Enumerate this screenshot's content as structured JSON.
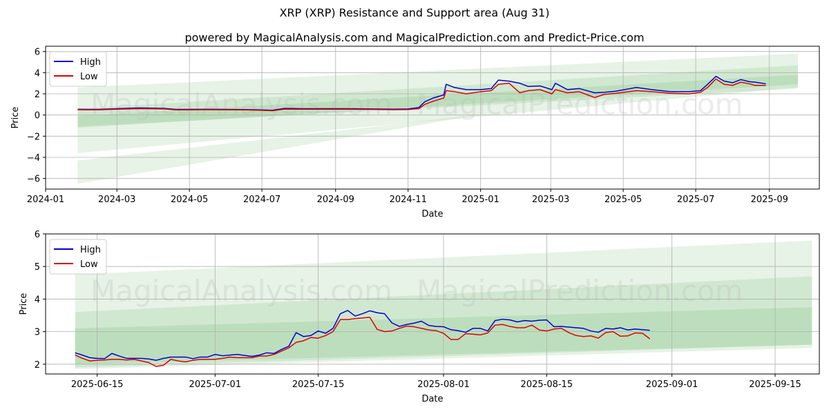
{
  "page": {
    "title": "XRP (XRP) Resistance and Support area (Aug 31)",
    "subtitle": "powered by MagicalAnalysis.com and MagicalPrediction.com and Predict-Price.com",
    "watermarks": [
      "MagicalAnalysis.com",
      "MagicalPrediction.com"
    ]
  },
  "colors": {
    "high": "#0000cc",
    "low": "#dd0000",
    "band": "#2e9a2e",
    "grid": "#b0b0b0"
  },
  "chart_data": [
    {
      "type": "line",
      "name": "full-range",
      "xlabel": "Date",
      "ylabel": "Price",
      "ylim": [
        -7,
        6.5
      ],
      "xlim": [
        "2024-01-01",
        "2025-10-13"
      ],
      "yticks": [
        -6,
        -4,
        -2,
        0,
        2,
        4,
        6
      ],
      "yticklabels": [
        "−6",
        "−4",
        "−2",
        "0",
        "2",
        "4",
        "6"
      ],
      "xticks": [
        "2024-01-01",
        "2024-03-01",
        "2024-05-01",
        "2024-07-01",
        "2024-09-01",
        "2024-11-01",
        "2025-01-01",
        "2025-03-01",
        "2025-05-01",
        "2025-07-01",
        "2025-09-01"
      ],
      "xticklabels": [
        "2024-01",
        "2024-03",
        "2024-05",
        "2024-07",
        "2024-09",
        "2024-11",
        "2025-01",
        "2025-03",
        "2025-05",
        "2025-07",
        "2025-09"
      ],
      "legend": {
        "position": "top-left",
        "entries": [
          "High",
          "Low"
        ]
      },
      "series": [
        {
          "name": "High",
          "x": [
            "2024-01-28",
            "2024-02-15",
            "2024-03-01",
            "2024-03-20",
            "2024-04-10",
            "2024-04-20",
            "2024-05-15",
            "2024-06-15",
            "2024-07-01",
            "2024-07-10",
            "2024-07-20",
            "2024-08-05",
            "2024-08-20",
            "2024-09-10",
            "2024-10-01",
            "2024-10-20",
            "2024-11-01",
            "2024-11-10",
            "2024-11-15",
            "2024-11-22",
            "2024-12-01",
            "2024-12-03",
            "2024-12-10",
            "2024-12-20",
            "2025-01-01",
            "2025-01-10",
            "2025-01-16",
            "2025-01-25",
            "2025-02-03",
            "2025-02-10",
            "2025-02-20",
            "2025-03-02",
            "2025-03-05",
            "2025-03-15",
            "2025-03-25",
            "2025-04-07",
            "2025-04-15",
            "2025-04-25",
            "2025-05-12",
            "2025-05-25",
            "2025-06-10",
            "2025-06-25",
            "2025-07-05",
            "2025-07-11",
            "2025-07-18",
            "2025-07-25",
            "2025-08-01",
            "2025-08-08",
            "2025-08-15",
            "2025-08-20",
            "2025-08-29"
          ],
          "values": [
            0.54,
            0.53,
            0.6,
            0.67,
            0.62,
            0.53,
            0.54,
            0.52,
            0.48,
            0.45,
            0.62,
            0.6,
            0.6,
            0.6,
            0.57,
            0.55,
            0.57,
            0.7,
            1.25,
            1.6,
            1.9,
            2.9,
            2.6,
            2.4,
            2.4,
            2.5,
            3.3,
            3.2,
            3.0,
            2.7,
            2.75,
            2.4,
            3.0,
            2.4,
            2.5,
            2.1,
            2.15,
            2.25,
            2.6,
            2.4,
            2.2,
            2.2,
            2.3,
            2.9,
            3.65,
            3.2,
            3.05,
            3.35,
            3.15,
            3.1,
            2.95
          ]
        },
        {
          "name": "Low",
          "x": [
            "2024-01-28",
            "2024-02-15",
            "2024-03-01",
            "2024-03-20",
            "2024-04-10",
            "2024-04-20",
            "2024-05-15",
            "2024-06-15",
            "2024-07-01",
            "2024-07-10",
            "2024-07-20",
            "2024-08-05",
            "2024-08-20",
            "2024-09-10",
            "2024-10-01",
            "2024-10-20",
            "2024-11-01",
            "2024-11-10",
            "2024-11-15",
            "2024-11-22",
            "2024-12-01",
            "2024-12-03",
            "2024-12-10",
            "2024-12-20",
            "2025-01-01",
            "2025-01-10",
            "2025-01-16",
            "2025-01-25",
            "2025-02-03",
            "2025-02-10",
            "2025-02-20",
            "2025-03-02",
            "2025-03-05",
            "2025-03-15",
            "2025-03-25",
            "2025-04-07",
            "2025-04-15",
            "2025-04-25",
            "2025-05-12",
            "2025-05-25",
            "2025-06-10",
            "2025-06-25",
            "2025-07-05",
            "2025-07-11",
            "2025-07-18",
            "2025-07-25",
            "2025-08-01",
            "2025-08-08",
            "2025-08-15",
            "2025-08-20",
            "2025-08-29"
          ],
          "values": [
            0.5,
            0.49,
            0.55,
            0.6,
            0.57,
            0.48,
            0.5,
            0.48,
            0.44,
            0.4,
            0.56,
            0.55,
            0.55,
            0.55,
            0.53,
            0.5,
            0.52,
            0.6,
            1.0,
            1.3,
            1.6,
            2.3,
            2.2,
            2.0,
            2.2,
            2.3,
            2.9,
            3.0,
            2.1,
            2.3,
            2.4,
            2.0,
            2.4,
            2.1,
            2.2,
            1.65,
            1.95,
            2.05,
            2.3,
            2.2,
            2.05,
            2.0,
            2.15,
            2.6,
            3.4,
            2.9,
            2.8,
            3.1,
            2.95,
            2.8,
            2.8
          ]
        }
      ],
      "bands": [
        {
          "x": [
            "2024-01-28",
            "2025-09-25"
          ],
          "upper": [
            2.6,
            5.8
          ],
          "lower": [
            -3.6,
            2.6
          ]
        },
        {
          "x": [
            "2024-01-28",
            "2025-09-25"
          ],
          "upper": [
            0.6,
            4.7
          ],
          "lower": [
            -1.1,
            2.5
          ]
        },
        {
          "x": [
            "2024-01-28",
            "2025-09-25"
          ],
          "upper": [
            -0.1,
            3.8
          ],
          "lower": [
            -1.2,
            2.9
          ]
        },
        {
          "x": [
            "2024-01-28",
            "2024-12-25"
          ],
          "upper": [
            -4.3,
            -0.05
          ],
          "lower": [
            -6.5,
            -0.1
          ]
        }
      ]
    },
    {
      "type": "line",
      "name": "recent",
      "xlabel": "Date",
      "ylabel": "Price",
      "ylim": [
        1.7,
        6.0
      ],
      "xlim": [
        "2025-06-08",
        "2025-09-21"
      ],
      "yticks": [
        2,
        3,
        4,
        5,
        6
      ],
      "yticklabels": [
        "2",
        "3",
        "4",
        "5",
        "6"
      ],
      "xticks": [
        "2025-06-15",
        "2025-07-01",
        "2025-07-15",
        "2025-08-01",
        "2025-08-15",
        "2025-09-01",
        "2025-09-15"
      ],
      "xticklabels": [
        "2025-06-15",
        "2025-07-01",
        "2025-07-15",
        "2025-08-01",
        "2025-08-15",
        "2025-09-01",
        "2025-09-15"
      ],
      "legend": {
        "position": "top-left",
        "entries": [
          "High",
          "Low"
        ]
      },
      "series": [
        {
          "name": "High",
          "x": [
            "2025-06-12",
            "2025-06-13",
            "2025-06-14",
            "2025-06-15",
            "2025-06-16",
            "2025-06-17",
            "2025-06-18",
            "2025-06-19",
            "2025-06-20",
            "2025-06-21",
            "2025-06-22",
            "2025-06-23",
            "2025-06-24",
            "2025-06-25",
            "2025-06-26",
            "2025-06-27",
            "2025-06-28",
            "2025-06-29",
            "2025-06-30",
            "2025-07-01",
            "2025-07-02",
            "2025-07-03",
            "2025-07-04",
            "2025-07-05",
            "2025-07-06",
            "2025-07-07",
            "2025-07-08",
            "2025-07-09",
            "2025-07-10",
            "2025-07-11",
            "2025-07-12",
            "2025-07-13",
            "2025-07-14",
            "2025-07-15",
            "2025-07-16",
            "2025-07-17",
            "2025-07-18",
            "2025-07-19",
            "2025-07-20",
            "2025-07-21",
            "2025-07-22",
            "2025-07-23",
            "2025-07-24",
            "2025-07-25",
            "2025-07-26",
            "2025-07-27",
            "2025-07-28",
            "2025-07-29",
            "2025-07-30",
            "2025-07-31",
            "2025-08-01",
            "2025-08-02",
            "2025-08-03",
            "2025-08-04",
            "2025-08-05",
            "2025-08-06",
            "2025-08-07",
            "2025-08-08",
            "2025-08-09",
            "2025-08-10",
            "2025-08-11",
            "2025-08-12",
            "2025-08-13",
            "2025-08-14",
            "2025-08-15",
            "2025-08-16",
            "2025-08-17",
            "2025-08-18",
            "2025-08-19",
            "2025-08-20",
            "2025-08-21",
            "2025-08-22",
            "2025-08-23",
            "2025-08-24",
            "2025-08-25",
            "2025-08-26",
            "2025-08-27",
            "2025-08-28",
            "2025-08-29"
          ],
          "values": [
            2.35,
            2.28,
            2.2,
            2.18,
            2.17,
            2.33,
            2.25,
            2.18,
            2.18,
            2.18,
            2.16,
            2.12,
            2.18,
            2.22,
            2.22,
            2.22,
            2.17,
            2.22,
            2.22,
            2.3,
            2.26,
            2.28,
            2.3,
            2.27,
            2.24,
            2.28,
            2.35,
            2.33,
            2.45,
            2.55,
            2.97,
            2.85,
            2.88,
            3.02,
            2.95,
            3.1,
            3.55,
            3.65,
            3.48,
            3.55,
            3.64,
            3.58,
            3.55,
            3.27,
            3.16,
            3.22,
            3.26,
            3.32,
            3.19,
            3.16,
            3.15,
            3.06,
            3.03,
            2.98,
            3.1,
            3.1,
            3.02,
            3.34,
            3.38,
            3.36,
            3.3,
            3.34,
            3.32,
            3.35,
            3.36,
            3.15,
            3.16,
            3.14,
            3.12,
            3.1,
            3.02,
            2.98,
            3.1,
            3.08,
            3.12,
            3.05,
            3.08,
            3.06,
            3.04
          ]
        },
        {
          "name": "Low",
          "x": [
            "2025-06-12",
            "2025-06-13",
            "2025-06-14",
            "2025-06-15",
            "2025-06-16",
            "2025-06-17",
            "2025-06-18",
            "2025-06-19",
            "2025-06-20",
            "2025-06-21",
            "2025-06-22",
            "2025-06-23",
            "2025-06-24",
            "2025-06-25",
            "2025-06-26",
            "2025-06-27",
            "2025-06-28",
            "2025-06-29",
            "2025-06-30",
            "2025-07-01",
            "2025-07-02",
            "2025-07-03",
            "2025-07-04",
            "2025-07-05",
            "2025-07-06",
            "2025-07-07",
            "2025-07-08",
            "2025-07-09",
            "2025-07-10",
            "2025-07-11",
            "2025-07-12",
            "2025-07-13",
            "2025-07-14",
            "2025-07-15",
            "2025-07-16",
            "2025-07-17",
            "2025-07-18",
            "2025-07-19",
            "2025-07-20",
            "2025-07-21",
            "2025-07-22",
            "2025-07-23",
            "2025-07-24",
            "2025-07-25",
            "2025-07-26",
            "2025-07-27",
            "2025-07-28",
            "2025-07-29",
            "2025-07-30",
            "2025-07-31",
            "2025-08-01",
            "2025-08-02",
            "2025-08-03",
            "2025-08-04",
            "2025-08-05",
            "2025-08-06",
            "2025-08-07",
            "2025-08-08",
            "2025-08-09",
            "2025-08-10",
            "2025-08-11",
            "2025-08-12",
            "2025-08-13",
            "2025-08-14",
            "2025-08-15",
            "2025-08-16",
            "2025-08-17",
            "2025-08-18",
            "2025-08-19",
            "2025-08-20",
            "2025-08-21",
            "2025-08-22",
            "2025-08-23",
            "2025-08-24",
            "2025-08-25",
            "2025-08-26",
            "2025-08-27",
            "2025-08-28",
            "2025-08-29"
          ],
          "values": [
            2.28,
            2.18,
            2.1,
            2.12,
            2.13,
            2.15,
            2.15,
            2.13,
            2.15,
            2.1,
            2.05,
            1.93,
            1.97,
            2.15,
            2.1,
            2.07,
            2.12,
            2.15,
            2.15,
            2.15,
            2.18,
            2.22,
            2.2,
            2.2,
            2.2,
            2.25,
            2.25,
            2.3,
            2.4,
            2.5,
            2.67,
            2.72,
            2.82,
            2.8,
            2.88,
            3.0,
            3.37,
            3.37,
            3.4,
            3.42,
            3.44,
            3.07,
            3.0,
            3.02,
            3.1,
            3.17,
            3.15,
            3.1,
            3.05,
            3.03,
            2.95,
            2.76,
            2.76,
            2.94,
            2.92,
            2.9,
            2.96,
            3.2,
            3.22,
            3.16,
            3.12,
            3.12,
            3.2,
            3.05,
            3.02,
            3.08,
            3.1,
            2.97,
            2.88,
            2.85,
            2.87,
            2.8,
            2.97,
            3.0,
            2.86,
            2.87,
            2.96,
            2.95,
            2.78
          ]
        }
      ],
      "bands": [
        {
          "x": [
            "2025-06-12",
            "2025-09-20"
          ],
          "upper": [
            4.75,
            5.8
          ],
          "lower": [
            1.85,
            2.5
          ]
        },
        {
          "x": [
            "2025-06-12",
            "2025-09-20"
          ],
          "upper": [
            3.6,
            4.7
          ],
          "lower": [
            1.9,
            2.6
          ]
        },
        {
          "x": [
            "2025-06-12",
            "2025-09-20"
          ],
          "upper": [
            3.1,
            3.75
          ],
          "lower": [
            2.0,
            2.6
          ]
        }
      ]
    }
  ]
}
